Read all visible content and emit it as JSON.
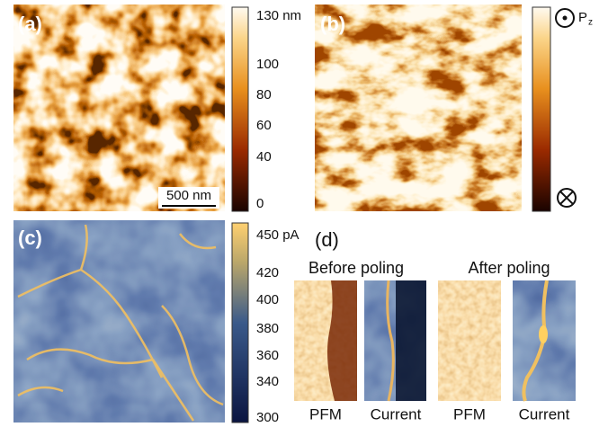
{
  "panels": {
    "a": {
      "label": "(a)",
      "scale_bar": "500 nm",
      "colorbar": [
        "130 nm",
        "100",
        "80",
        "60",
        "40",
        "0"
      ]
    },
    "b": {
      "label": "(b)",
      "polarization": "P",
      "subscript": "z"
    },
    "c": {
      "label": "(c)",
      "colorbar": [
        "450 pA",
        "420",
        "400",
        "380",
        "360",
        "340",
        "300"
      ]
    },
    "d": {
      "label": "(d)",
      "groups": [
        {
          "title": "Before poling",
          "images": [
            "PFM",
            "Current"
          ]
        },
        {
          "title": "After poling",
          "images": [
            "PFM",
            "Current"
          ]
        }
      ]
    }
  }
}
